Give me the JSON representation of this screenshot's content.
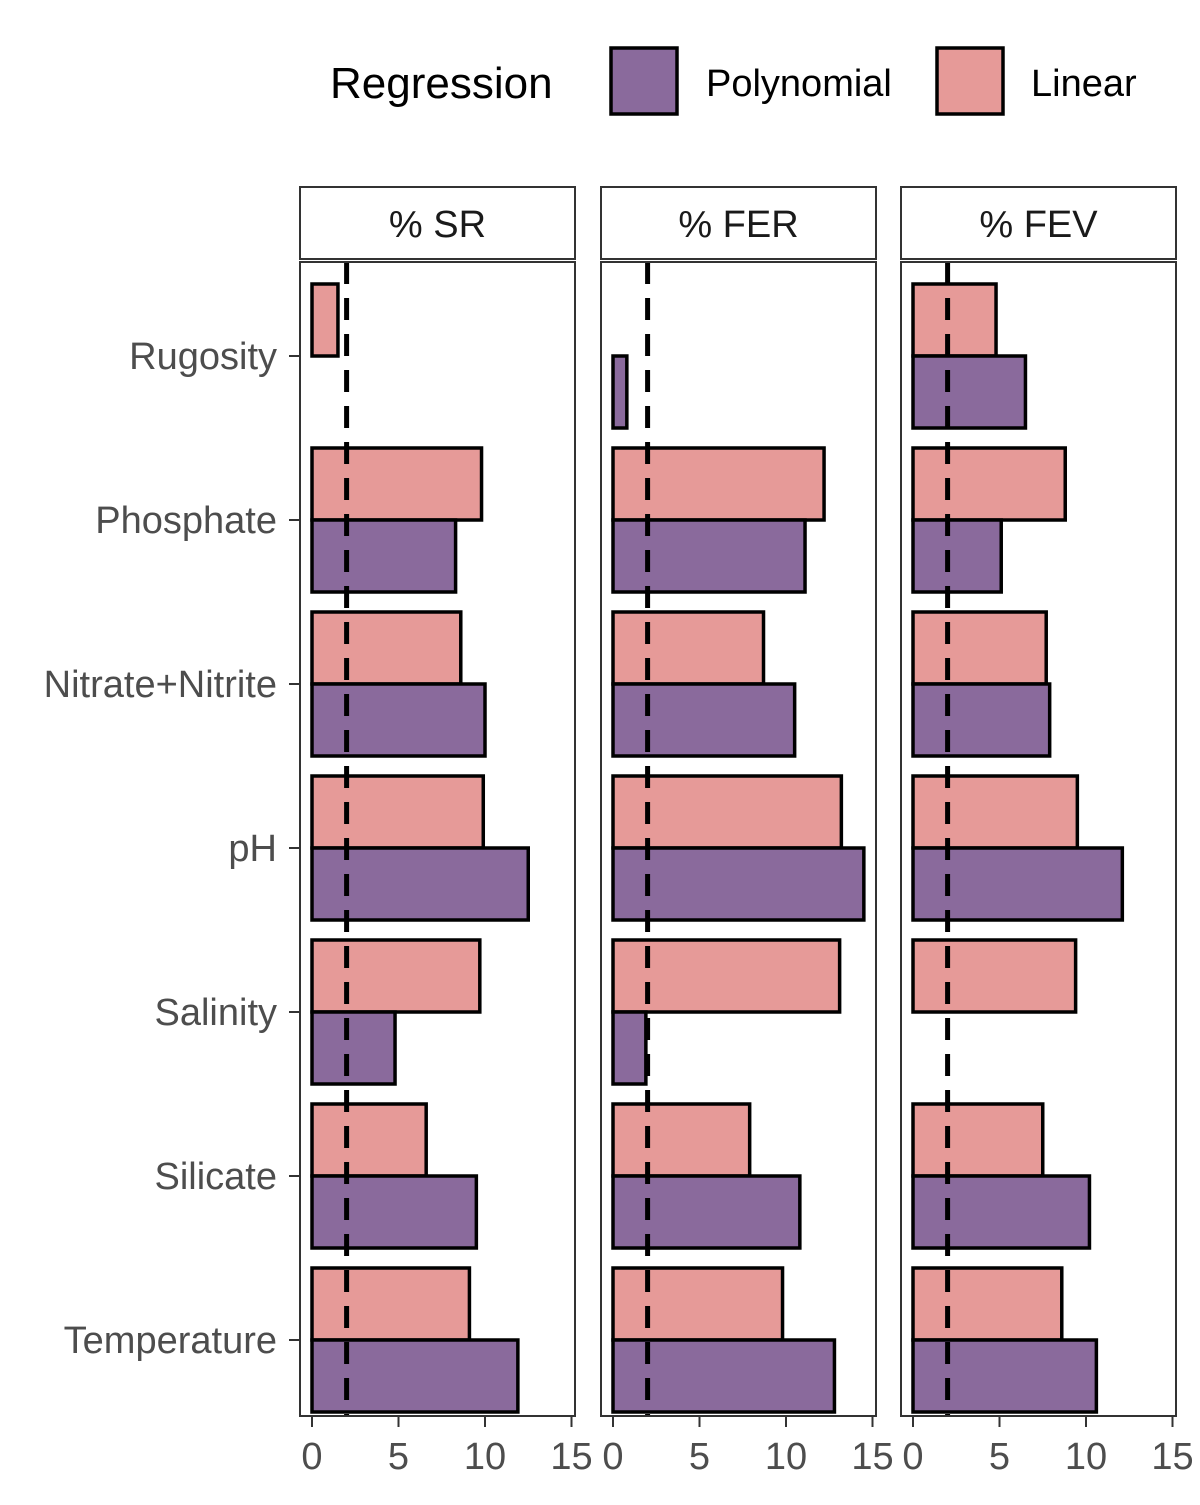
{
  "legend": {
    "title": "Regression",
    "position": "top",
    "entries": [
      {
        "name": "Polynomial",
        "color": "#8a6a9c"
      },
      {
        "name": "Linear",
        "color": "#e69a98"
      }
    ]
  },
  "chart_data": {
    "type": "bar",
    "orientation": "horizontal",
    "categories": [
      "Rugosity",
      "Phosphate",
      "Nitrate+Nitrite",
      "pH",
      "Salinity",
      "Silicate",
      "Temperature"
    ],
    "xlim": [
      0,
      15
    ],
    "xticks": [
      0,
      5,
      10,
      15
    ],
    "reference_line": 2,
    "grid": false,
    "legend": "top",
    "panels": [
      {
        "title": "% SR",
        "series": [
          {
            "name": "Linear",
            "values": [
              1.5,
              9.8,
              8.6,
              9.9,
              9.7,
              6.6,
              9.1
            ]
          },
          {
            "name": "Polynomial",
            "values": [
              0.0,
              8.3,
              10.0,
              12.5,
              4.8,
              9.5,
              11.9
            ]
          }
        ]
      },
      {
        "title": "% FER",
        "series": [
          {
            "name": "Linear",
            "values": [
              0.0,
              12.2,
              8.7,
              13.2,
              13.1,
              7.9,
              9.8
            ]
          },
          {
            "name": "Polynomial",
            "values": [
              0.8,
              11.1,
              10.5,
              14.5,
              1.9,
              10.8,
              12.8
            ]
          }
        ]
      },
      {
        "title": "% FEV",
        "series": [
          {
            "name": "Linear",
            "values": [
              4.8,
              8.8,
              7.7,
              9.5,
              9.4,
              7.5,
              8.6
            ]
          },
          {
            "name": "Polynomial",
            "values": [
              6.5,
              5.1,
              7.9,
              12.1,
              0.0,
              10.2,
              10.6
            ]
          }
        ]
      }
    ]
  }
}
